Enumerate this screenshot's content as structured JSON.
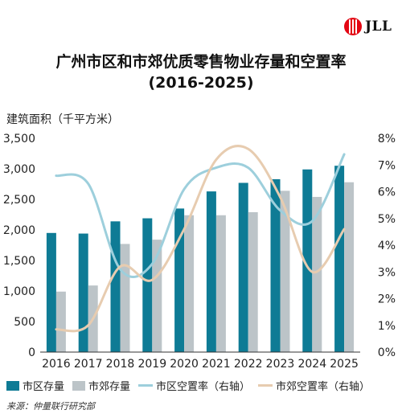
{
  "brand": {
    "name": "JLL"
  },
  "chart_data": {
    "type": "bar",
    "title": "广州市区和市郊优质零售物业存量和空置率",
    "subtitle": "(2016-2025)",
    "ylabel": "建筑面积（千平方米）",
    "y2label": "",
    "categories": [
      "2016",
      "2017",
      "2018",
      "2019",
      "2020",
      "2021",
      "2022",
      "2023",
      "2024",
      "2025"
    ],
    "ylim": [
      0,
      3500
    ],
    "yticks": [
      "0",
      "500",
      "1,000",
      "1,500",
      "2,000",
      "2,500",
      "3,000",
      "3,500"
    ],
    "y2lim": [
      0,
      8
    ],
    "y2ticks": [
      "0%",
      "1%",
      "2%",
      "3%",
      "4%",
      "5%",
      "6%",
      "7%",
      "8%"
    ],
    "grid": false,
    "legend_position": "bottom",
    "series": [
      {
        "name": "市区存量",
        "kind": "bar",
        "axis": "left",
        "color": "#0e7b95",
        "values": [
          1950,
          1940,
          2140,
          2190,
          2350,
          2630,
          2770,
          2830,
          2990,
          3050
        ]
      },
      {
        "name": "市郊存量",
        "kind": "bar",
        "axis": "left",
        "color": "#bcc4c8",
        "values": [
          990,
          1090,
          1770,
          1840,
          2240,
          2240,
          2290,
          2640,
          2540,
          2780
        ]
      },
      {
        "name": "市区空置率（右轴）",
        "kind": "line",
        "axis": "right",
        "color": "#9dcfdc",
        "values": [
          6.6,
          6.3,
          3.1,
          3.3,
          6.1,
          6.9,
          6.9,
          5.3,
          4.9,
          7.4
        ]
      },
      {
        "name": "市郊空置率（右轴）",
        "kind": "line",
        "axis": "right",
        "color": "#e7ccb0",
        "values": [
          0.85,
          1.0,
          3.2,
          2.7,
          4.6,
          7.2,
          7.6,
          5.8,
          3.0,
          4.6
        ]
      }
    ]
  },
  "source": "来源：仲量联行研究部"
}
